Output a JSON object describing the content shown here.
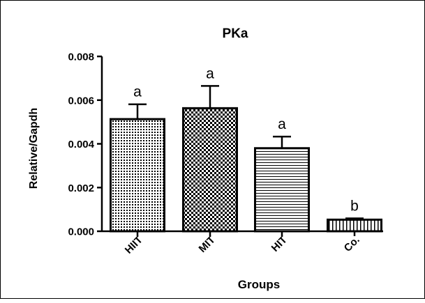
{
  "chart_data": {
    "type": "bar",
    "title": "PKa",
    "xlabel": "Groups",
    "ylabel": "Relative/Gapdh",
    "categories": [
      "HIIT",
      "MIT",
      "HIT",
      "Co."
    ],
    "values": [
      0.00513,
      0.00563,
      0.0038,
      0.00053
    ],
    "error": [
      0.00068,
      0.00102,
      0.00053,
      6e-05
    ],
    "significance": [
      "a",
      "a",
      "a",
      "b"
    ],
    "patterns": [
      "dots",
      "checker",
      "horizontal-lines",
      "vertical-lines"
    ],
    "ylim": [
      0,
      0.008
    ],
    "yticks": [
      "0.000",
      "0.002",
      "0.004",
      "0.006",
      "0.008"
    ],
    "ytick_values": [
      0,
      0.002,
      0.004,
      0.006,
      0.008
    ],
    "grid": false,
    "legend": "none",
    "colors": {
      "bar_fill": "#ffffff",
      "bar_stroke": "#000000",
      "pattern": "#000000"
    }
  }
}
